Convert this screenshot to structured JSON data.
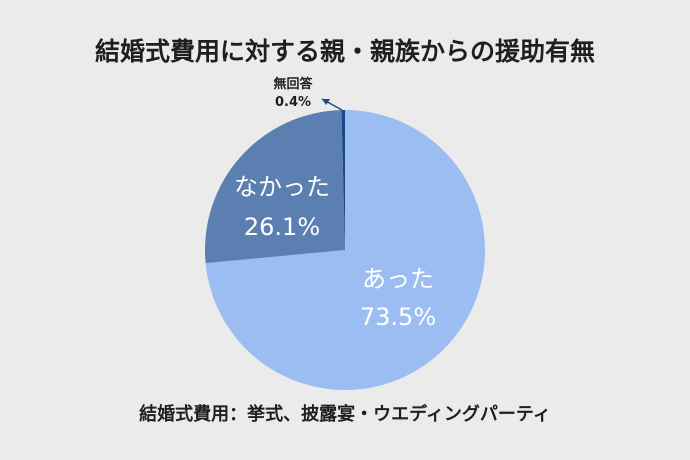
{
  "chart_data": {
    "type": "pie",
    "title": "結婚式費用に対する親・親族からの援助有無",
    "note": "結婚式費用：挙式、披露宴・ウエディングパーティ",
    "slices": [
      {
        "label": "あった",
        "value_label": "73.5%",
        "value": 73.5,
        "color": "#9bbdf1"
      },
      {
        "label": "なかった",
        "value_label": "26.1%",
        "value": 26.1,
        "color": "#5a7fb0"
      },
      {
        "label": "無回答",
        "value_label": "0.4%",
        "value": 0.4,
        "color": "#1d4a87"
      }
    ]
  }
}
